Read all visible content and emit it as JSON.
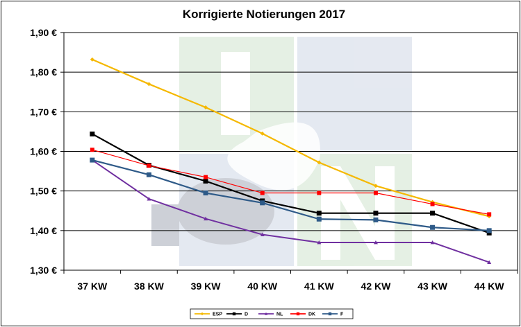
{
  "chart_data": {
    "type": "line",
    "title": "Korrigierte Notierungen 2017",
    "xlabel": "",
    "ylabel": "",
    "categories": [
      "37 KW",
      "38 KW",
      "39 KW",
      "40 KW",
      "41 KW",
      "42 KW",
      "43 KW",
      "44 KW"
    ],
    "ylim": [
      1.3,
      1.9
    ],
    "yticks": [
      {
        "value": 1.9,
        "label": "1,90 €"
      },
      {
        "value": 1.8,
        "label": "1,80 €"
      },
      {
        "value": 1.7,
        "label": "1,70 €"
      },
      {
        "value": 1.6,
        "label": "1,60 €"
      },
      {
        "value": 1.5,
        "label": "1,50 €"
      },
      {
        "value": 1.4,
        "label": "1,40 €"
      },
      {
        "value": 1.3,
        "label": "1,30 €"
      }
    ],
    "grid": true,
    "legend_position": "bottom",
    "watermark": "ISN",
    "series": [
      {
        "name": "ESP",
        "color": "#F5B800",
        "marker": "diamond",
        "width": 2.2,
        "values": [
          1.832,
          1.77,
          1.711,
          1.645,
          1.572,
          1.513,
          1.472,
          1.436
        ]
      },
      {
        "name": "D",
        "color": "#000000",
        "marker": "square",
        "width": 2.2,
        "values": [
          1.644,
          1.565,
          1.525,
          1.475,
          1.444,
          1.444,
          1.444,
          1.394
        ]
      },
      {
        "name": "NL",
        "color": "#7030A0",
        "marker": "triangle",
        "width": 2.0,
        "values": [
          1.578,
          1.48,
          1.43,
          1.39,
          1.37,
          1.37,
          1.37,
          1.32
        ]
      },
      {
        "name": "DK",
        "color": "#FF0000",
        "marker": "square",
        "width": 1.2,
        "values": [
          1.604,
          1.564,
          1.535,
          1.495,
          1.495,
          1.495,
          1.467,
          1.441
        ]
      },
      {
        "name": "F",
        "color": "#2E5A88",
        "marker": "square",
        "width": 2.2,
        "values": [
          1.578,
          1.541,
          1.495,
          1.47,
          1.429,
          1.427,
          1.408,
          1.4
        ]
      }
    ]
  }
}
